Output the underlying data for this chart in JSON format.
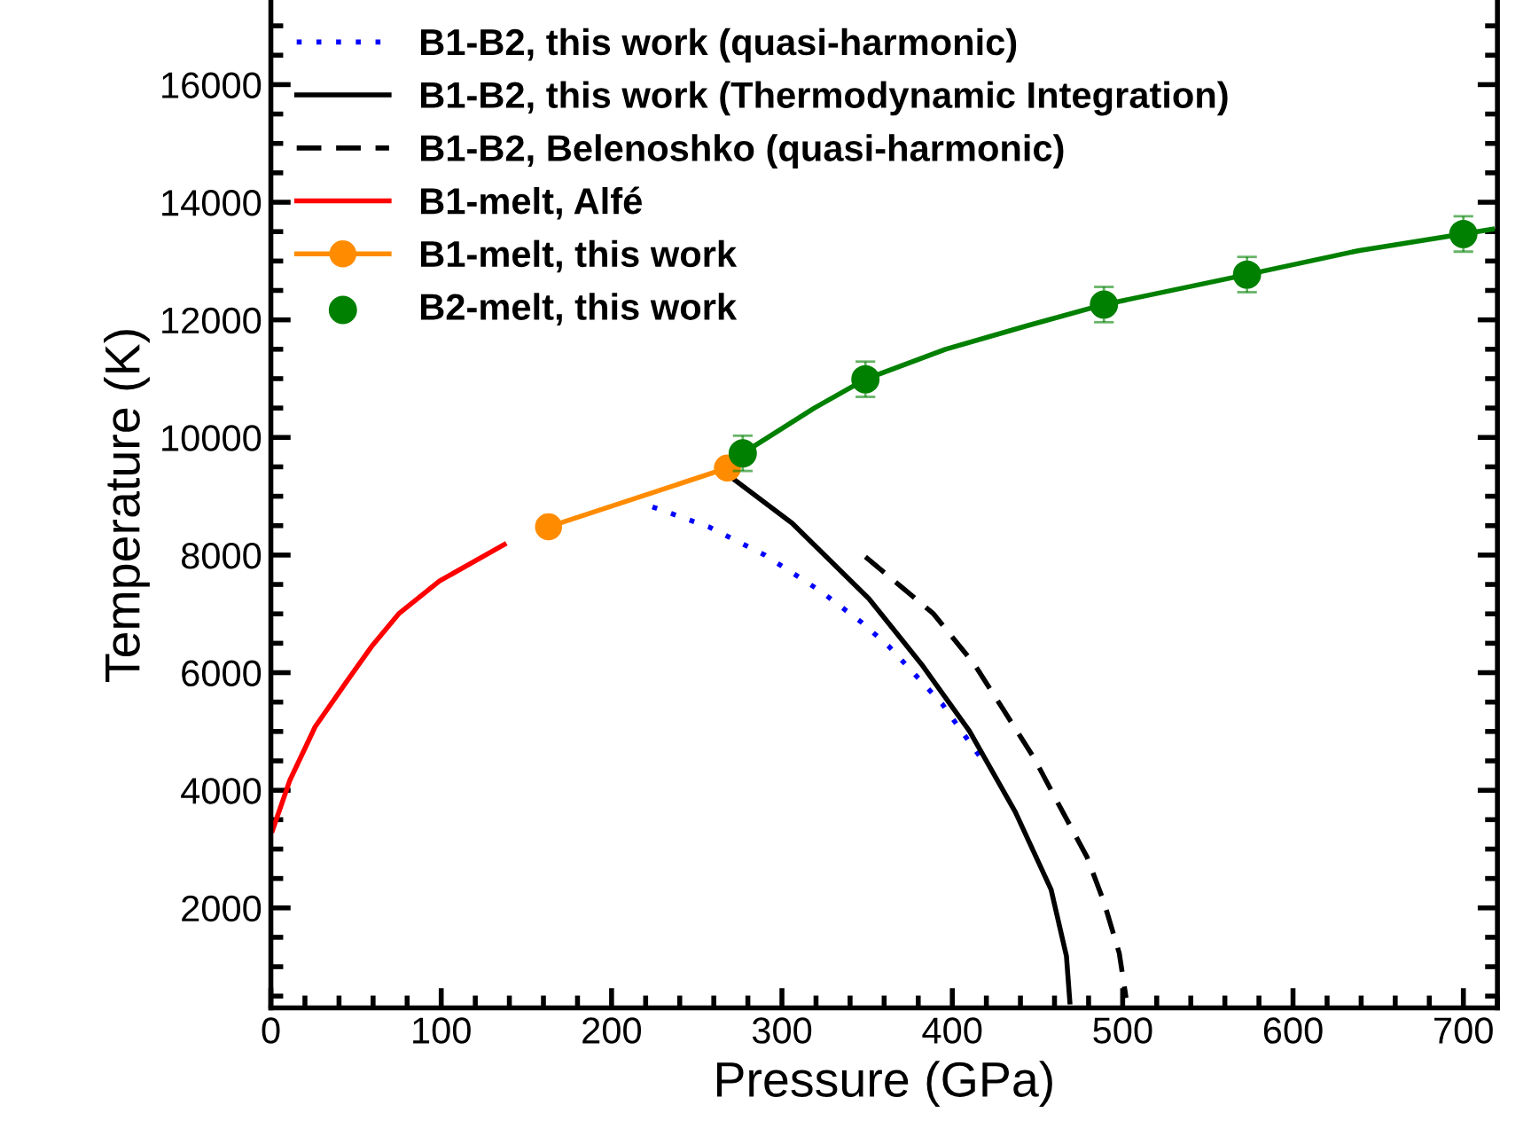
{
  "chart_data": {
    "type": "line",
    "xlabel": "Pressure (GPa)",
    "ylabel": "Temperature (K)",
    "xlim": [
      0,
      720
    ],
    "xticks": [
      0,
      100,
      200,
      300,
      400,
      500,
      600,
      700
    ],
    "ylim": [
      300,
      17400
    ],
    "yticks": [
      2000,
      4000,
      6000,
      8000,
      10000,
      12000,
      14000,
      16000
    ],
    "grid": false,
    "legend": "top left",
    "series": [
      {
        "name": "B1-B2, this work (quasi-harmonic)",
        "type": "line",
        "color": "#0000ff",
        "line_style": "dotted",
        "marker": "none",
        "x": [
          224,
          257,
          290,
          323,
          347,
          363,
          394,
          418
        ],
        "values": [
          8820,
          8480,
          8000,
          7380,
          6850,
          6440,
          5470,
          4500
        ]
      },
      {
        "name": "B1-B2, this work (Thermodynamic Integration)",
        "type": "line",
        "color": "#000000",
        "line_style": "solid",
        "marker": "none",
        "x": [
          269,
          306,
          351,
          382,
          410,
          437,
          458,
          467,
          469
        ],
        "values": [
          9350,
          8540,
          7260,
          6140,
          5010,
          3630,
          2310,
          1180,
          400
        ]
      },
      {
        "name": "B1-B2, Belenoshko (quasi-harmonic)",
        "type": "line",
        "color": "#000000",
        "line_style": "dashed",
        "marker": "none",
        "x": [
          349,
          389,
          413,
          430,
          448,
          463,
          479,
          489,
          498,
          502
        ],
        "values": [
          7970,
          7000,
          6140,
          5370,
          4550,
          3730,
          2870,
          2100,
          1230,
          470
        ]
      },
      {
        "name": "B1-melt, Alfé",
        "type": "line",
        "color": "#ff0000",
        "line_style": "solid",
        "marker": "none",
        "x": [
          1,
          11,
          26,
          44,
          59,
          75,
          99,
          137
        ],
        "values": [
          3320,
          4160,
          5080,
          5830,
          6440,
          7000,
          7560,
          8180
        ]
      },
      {
        "name": "B1-melt, this work",
        "type": "line",
        "color": "#ff8c00",
        "line_style": "solid",
        "marker": "circle",
        "x": [
          163,
          268
        ],
        "values": [
          8480,
          9480
        ]
      },
      {
        "name": "B2-melt, this work",
        "type": "scatter",
        "color": "#008000",
        "marker": "circle",
        "x": [
          277,
          349,
          489,
          573,
          700
        ],
        "values": [
          9730,
          10990,
          12260,
          12770,
          13460
        ],
        "errors": [
          300,
          300,
          300,
          300,
          300
        ]
      },
      {
        "color": "#008000",
        "line_style": "solid",
        "marker": "none",
        "x": [
          277,
          319,
          349,
          396,
          444,
          489,
          573,
          639,
          700,
          717
        ],
        "values": [
          9730,
          10500,
          10990,
          11500,
          11900,
          12260,
          12770,
          13180,
          13460,
          13540
        ]
      }
    ]
  }
}
